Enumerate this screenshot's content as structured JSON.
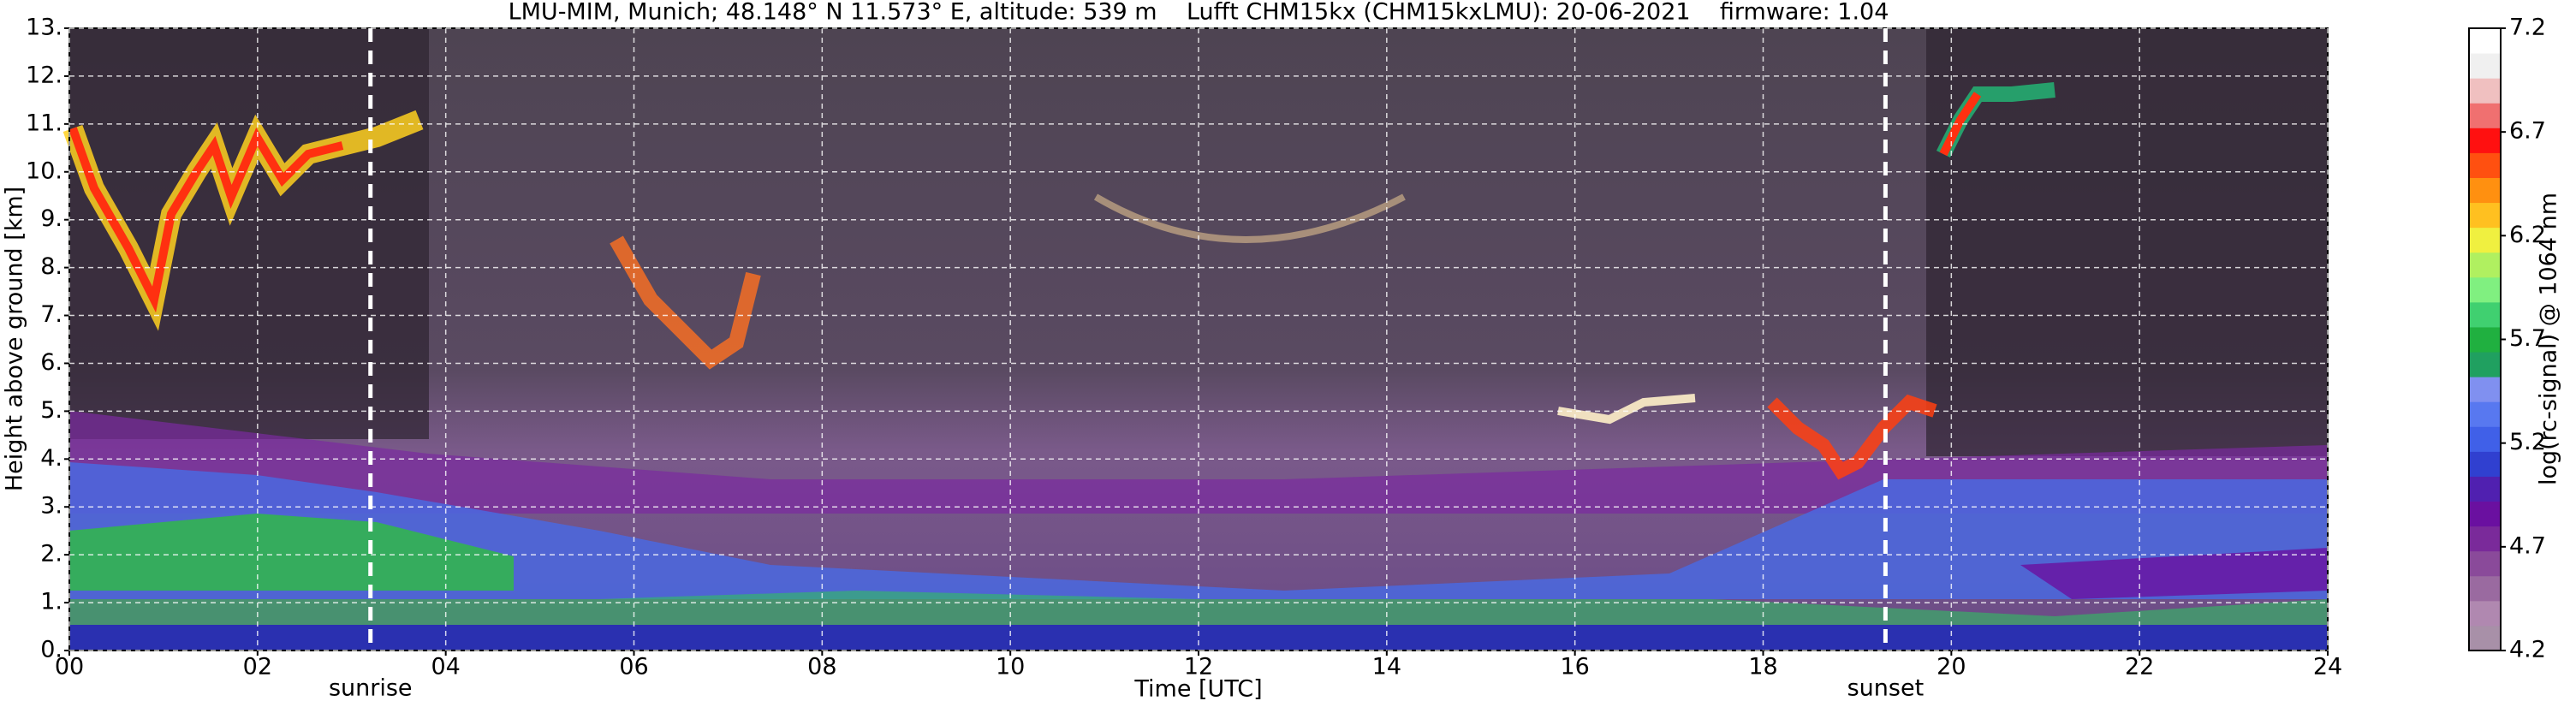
{
  "chart_data": {
    "type": "heatmap",
    "title": "LMU-MIM, Munich; 48.148° N 11.573° E, altitude: 539 m    Lufft CHM15kx (CHM15kxLMU): 20-06-2021    firmware: 1.04",
    "x_label": "Time [UTC]",
    "y_label": "Height above ground [km]",
    "xlim": [
      0,
      24
    ],
    "xticks": [
      {
        "value": 0,
        "label": "00"
      },
      {
        "value": 2,
        "label": "02"
      },
      {
        "value": 4,
        "label": "04"
      },
      {
        "value": 6,
        "label": "06"
      },
      {
        "value": 8,
        "label": "08"
      },
      {
        "value": 10,
        "label": "10"
      },
      {
        "value": 12,
        "label": "12"
      },
      {
        "value": 14,
        "label": "14"
      },
      {
        "value": 16,
        "label": "16"
      },
      {
        "value": 18,
        "label": "18"
      },
      {
        "value": 20,
        "label": "20"
      },
      {
        "value": 22,
        "label": "22"
      },
      {
        "value": 24,
        "label": "24"
      }
    ],
    "ylim": [
      0,
      13
    ],
    "yticks": [
      {
        "value": 0,
        "label": "0."
      },
      {
        "value": 1,
        "label": "1."
      },
      {
        "value": 2,
        "label": "2."
      },
      {
        "value": 3,
        "label": "3."
      },
      {
        "value": 4,
        "label": "4."
      },
      {
        "value": 5,
        "label": "5."
      },
      {
        "value": 6,
        "label": "6."
      },
      {
        "value": 7,
        "label": "7."
      },
      {
        "value": 8,
        "label": "8."
      },
      {
        "value": 9,
        "label": "9."
      },
      {
        "value": 10,
        "label": "10."
      },
      {
        "value": 11,
        "label": "11."
      },
      {
        "value": 12,
        "label": "12."
      },
      {
        "value": 13,
        "label": "13."
      }
    ],
    "grid": true,
    "annotations": [
      {
        "label": "sunrise",
        "x": 3.2
      },
      {
        "label": "sunset",
        "x": 19.3
      }
    ],
    "colorbar": {
      "label": "log(rc-signal) @ 1064 nm",
      "lim": [
        4.2,
        7.2
      ],
      "ticks": [
        4.2,
        4.7,
        5.2,
        5.7,
        6.2,
        6.7,
        7.2
      ],
      "colors": [
        "#a890a8",
        "#b088b0",
        "#9a6aa0",
        "#8a4a9a",
        "#7a2a9a",
        "#6a10a0",
        "#5020b0",
        "#3040d0",
        "#4060e8",
        "#5878f0",
        "#8090f0",
        "#20a060",
        "#20b040",
        "#40d070",
        "#80f080",
        "#b0f060",
        "#f0f040",
        "#ffc020",
        "#ff9010",
        "#ff5010",
        "#ff1010",
        "#f07070",
        "#f0c0c0",
        "#f0f0f0",
        "#ffffff"
      ]
    }
  }
}
